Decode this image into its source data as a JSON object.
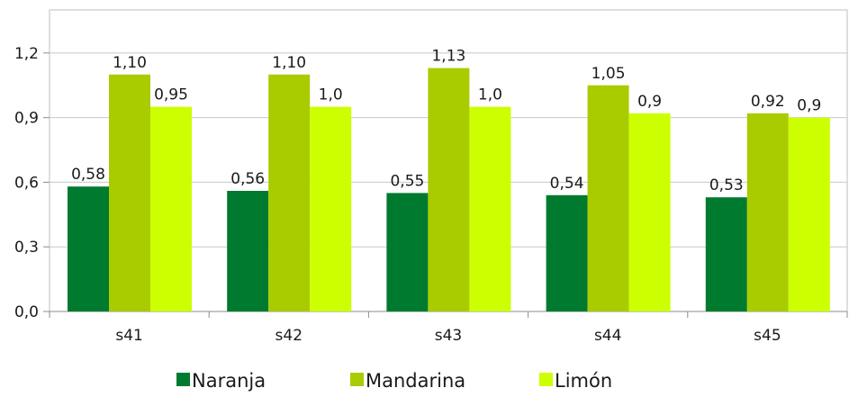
{
  "chart_data": {
    "type": "bar",
    "categories": [
      "s41",
      "s42",
      "s43",
      "s44",
      "s45"
    ],
    "series": [
      {
        "name": "Naranja",
        "color": "#007a2e",
        "values": [
          0.58,
          0.56,
          0.55,
          0.54,
          0.53
        ],
        "labels": [
          "0,58",
          "0,56",
          "0,55",
          "0,54",
          "0,53"
        ]
      },
      {
        "name": "Mandarina",
        "color": "#a8cc00",
        "values": [
          1.1,
          1.1,
          1.13,
          1.05,
          0.92
        ],
        "labels": [
          "1,10",
          "1,10",
          "1,13",
          "1,05",
          "0,92"
        ]
      },
      {
        "name": "Limón",
        "color": "#ccff00",
        "values": [
          0.95,
          0.95,
          0.95,
          0.92,
          0.9
        ],
        "labels": [
          "0,95",
          "1,0",
          "1,0",
          "0,9",
          "0,9"
        ]
      }
    ],
    "yticks": [
      0,
      0.3,
      0.6,
      0.9,
      1.2
    ],
    "ytick_labels": [
      "0,0",
      "0,3",
      "0,6",
      "0,9",
      "1,2"
    ],
    "ylim": [
      0,
      1.4
    ],
    "title": "",
    "xlabel": "",
    "ylabel": "",
    "grid": true,
    "legend_position": "bottom"
  }
}
